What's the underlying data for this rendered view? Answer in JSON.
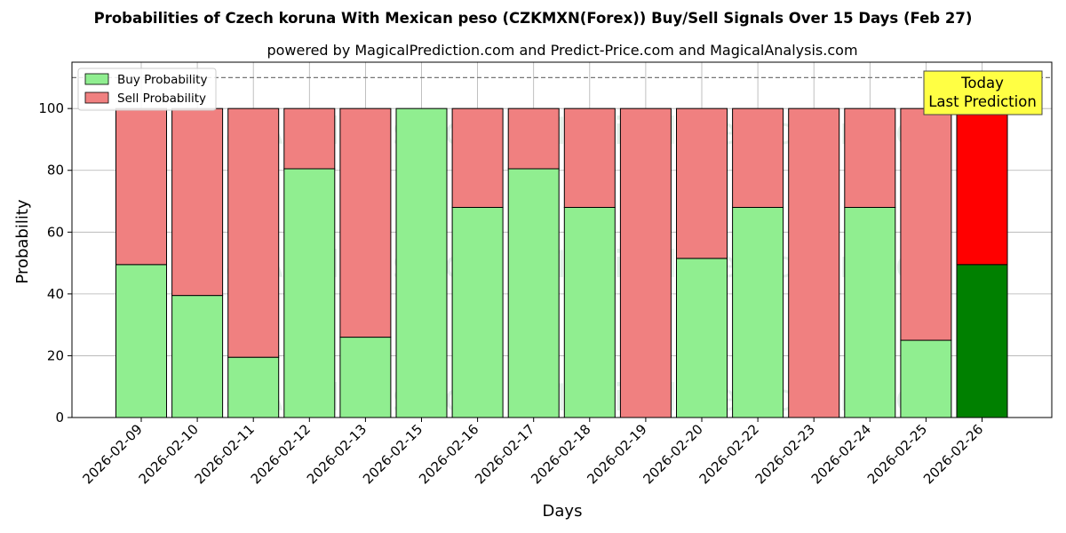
{
  "chart_data": {
    "type": "bar",
    "stacked": true,
    "title": "Probabilities of Czech koruna With Mexican peso (CZKMXN(Forex)) Buy/Sell Signals Over 15 Days (Feb 27)",
    "subtitle": "powered by MagicalPrediction.com and Predict-Price.com and MagicalAnalysis.com",
    "xlabel": "Days",
    "ylabel": "Probability",
    "ylim": [
      0,
      115
    ],
    "yticks": [
      0,
      20,
      40,
      60,
      80,
      100
    ],
    "reference_line": 110,
    "grid": true,
    "legend_position": "top-left",
    "categories": [
      "2026-02-09",
      "2026-02-10",
      "2026-02-11",
      "2026-02-12",
      "2026-02-13",
      "2026-02-15",
      "2026-02-16",
      "2026-02-17",
      "2026-02-18",
      "2026-02-19",
      "2026-02-20",
      "2026-02-22",
      "2026-02-23",
      "2026-02-24",
      "2026-02-25",
      "2026-02-26"
    ],
    "series": [
      {
        "name": "Buy Probability",
        "values": [
          49.5,
          39.5,
          19.5,
          80.5,
          26,
          100,
          68,
          80.5,
          68,
          0,
          51.5,
          68,
          0,
          68,
          25,
          49.5
        ]
      },
      {
        "name": "Sell Probability",
        "values": [
          50.5,
          60.5,
          80.5,
          19.5,
          74,
          0,
          32,
          19.5,
          32,
          100,
          48.5,
          32,
          100,
          32,
          75,
          50.5
        ]
      }
    ],
    "annotation": {
      "line1": "Today",
      "line2": "Last Prediction"
    },
    "watermarks": [
      "MagicalAnalysis.com",
      "MagicalPrediction.com"
    ]
  },
  "colors": {
    "buy": "#90ee90",
    "sell": "#f08080",
    "buy_highlight": "#008000",
    "sell_highlight": "#ff0000",
    "annotation_bg": "#ffff44"
  }
}
